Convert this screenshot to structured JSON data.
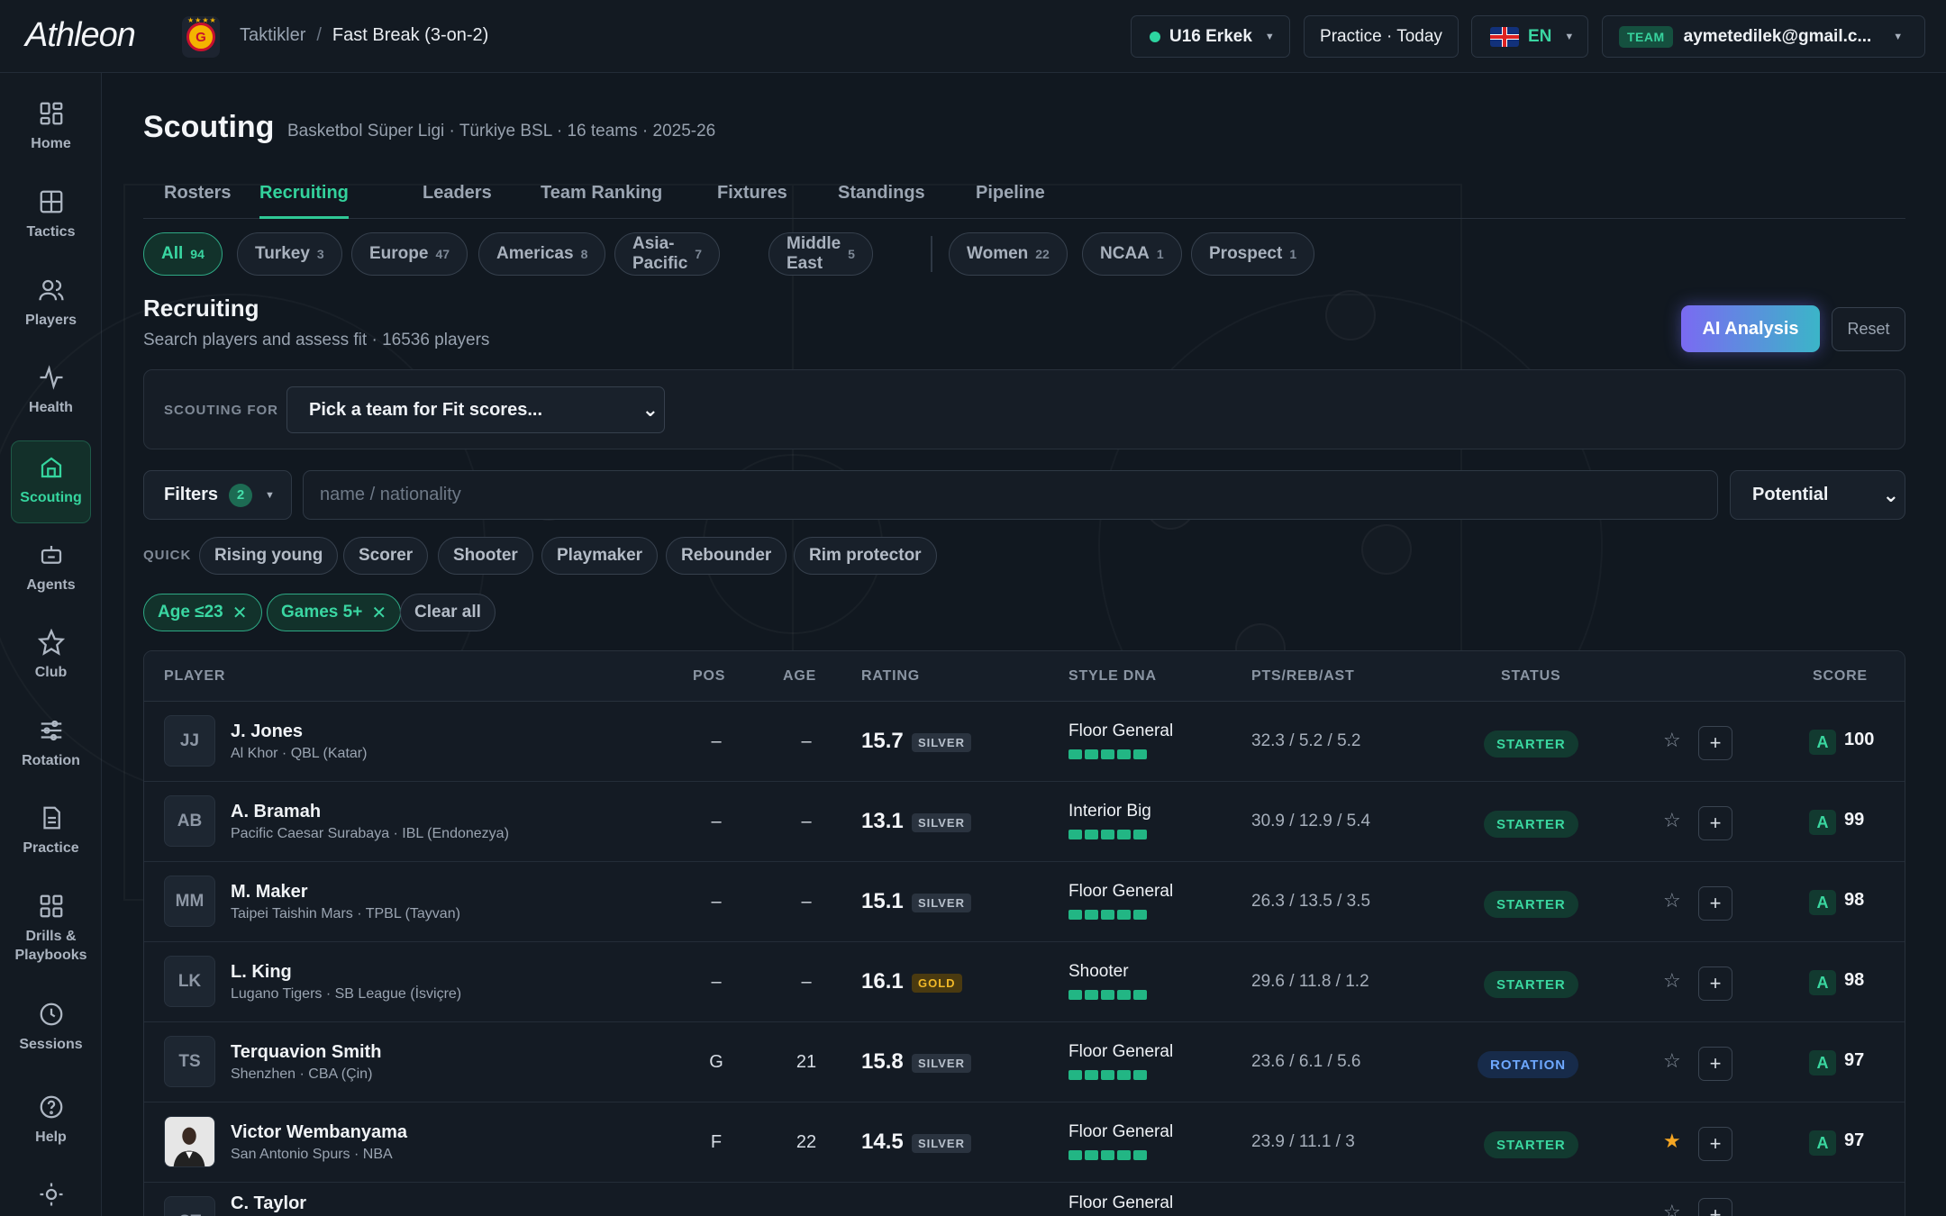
{
  "topbar": {
    "logo": "Athleon",
    "breadcrumb_parent": "Taktikler",
    "breadcrumb_sep": "/",
    "breadcrumb_current": "Fast Break (3-on-2)",
    "team_selector": "U16 Erkek",
    "session": "Practice · Today",
    "language": "EN",
    "account_badge": "TEAM",
    "account_email": "aymetedilek@gmail.c..."
  },
  "sidebar": {
    "items": [
      {
        "label": "Home",
        "icon": "home-icon"
      },
      {
        "label": "Tactics",
        "icon": "grid-icon"
      },
      {
        "label": "Players",
        "icon": "users-icon"
      },
      {
        "label": "Health",
        "icon": "pulse-icon"
      },
      {
        "label": "Scouting",
        "icon": "scouting-icon",
        "active": true
      },
      {
        "label": "Agents",
        "icon": "bot-icon"
      },
      {
        "label": "Club",
        "icon": "star-icon"
      },
      {
        "label": "Rotation",
        "icon": "sliders-icon"
      },
      {
        "label": "Practice",
        "icon": "clipboard-icon"
      },
      {
        "label": "Drills &",
        "label2": "Playbooks",
        "icon": "apps-icon"
      },
      {
        "label": "Sessions",
        "icon": "clock-icon"
      },
      {
        "label": "Help",
        "icon": "help-icon"
      }
    ]
  },
  "page": {
    "title": "Scouting",
    "subtitle": "Basketbol Süper Ligi · Türkiye BSL · 16 teams · 2025-26"
  },
  "tabs": [
    "Rosters",
    "Recruiting",
    "Leaders",
    "Team Ranking",
    "Fixtures",
    "Standings",
    "Pipeline"
  ],
  "active_tab": "Recruiting",
  "region_chips": [
    {
      "label": "All",
      "count": "94",
      "active": true
    },
    {
      "label": "Turkey",
      "count": "3"
    },
    {
      "label": "Europe",
      "count": "47"
    },
    {
      "label": "Americas",
      "count": "8"
    },
    {
      "label": "Asia-Pacific",
      "count": "7"
    },
    {
      "label": "Middle East",
      "count": "5"
    },
    {
      "label": "Women",
      "count": "22"
    },
    {
      "label": "NCAA",
      "count": "1"
    },
    {
      "label": "Prospect",
      "count": "1"
    }
  ],
  "recruiting": {
    "title": "Recruiting",
    "subtitle": "Search players and assess fit · 16536 players",
    "ai_button": "AI Analysis",
    "reset_button": "Reset",
    "scouting_for_label": "SCOUTING FOR",
    "scouting_for_value": "Pick a team for Fit scores...",
    "filters_label": "Filters",
    "filters_count": "2",
    "search_placeholder": "name / nationality",
    "sort_value": "Potential",
    "quick_label": "QUICK",
    "quick_filters": [
      "Rising young",
      "Scorer",
      "Shooter",
      "Playmaker",
      "Rebounder",
      "Rim protector"
    ],
    "active_filters": [
      "Age ≤23",
      "Games 5+"
    ],
    "clear_all": "Clear all"
  },
  "table": {
    "headers": {
      "player": "PLAYER",
      "pos": "POS",
      "age": "AGE",
      "rating": "RATING",
      "dna": "STYLE DNA",
      "stats": "PTS/REB/AST",
      "status": "STATUS",
      "score": "SCORE"
    },
    "rows": [
      {
        "initials": "JJ",
        "name": "J. Jones",
        "team": "Al Khor · QBL (Katar)",
        "pos": "–",
        "age": "–",
        "rating": "15.7",
        "tier": "SILVER",
        "dna": "Floor General",
        "stats": "32.3 / 5.2 / 5.2",
        "status": "STARTER",
        "starred": false,
        "grade": "A",
        "score": "100"
      },
      {
        "initials": "AB",
        "name": "A. Bramah",
        "team": "Pacific Caesar Surabaya · IBL (Endonezya)",
        "pos": "–",
        "age": "–",
        "rating": "13.1",
        "tier": "SILVER",
        "dna": "Interior Big",
        "stats": "30.9 / 12.9 / 5.4",
        "status": "STARTER",
        "starred": false,
        "grade": "A",
        "score": "99"
      },
      {
        "initials": "MM",
        "name": "M. Maker",
        "team": "Taipei Taishin Mars · TPBL (Tayvan)",
        "pos": "–",
        "age": "–",
        "rating": "15.1",
        "tier": "SILVER",
        "dna": "Floor General",
        "stats": "26.3 / 13.5 / 3.5",
        "status": "STARTER",
        "starred": false,
        "grade": "A",
        "score": "98"
      },
      {
        "initials": "LK",
        "name": "L. King",
        "team": "Lugano Tigers · SB League (İsviçre)",
        "pos": "–",
        "age": "–",
        "rating": "16.1",
        "tier": "GOLD",
        "dna": "Shooter",
        "stats": "29.6 / 11.8 / 1.2",
        "status": "STARTER",
        "starred": false,
        "grade": "A",
        "score": "98"
      },
      {
        "initials": "TS",
        "name": "Terquavion Smith",
        "team": "Shenzhen · CBA (Çin)",
        "pos": "G",
        "age": "21",
        "rating": "15.8",
        "tier": "SILVER",
        "dna": "Floor General",
        "stats": "23.6 / 6.1 / 5.6",
        "status": "ROTATION",
        "starred": false,
        "grade": "A",
        "score": "97"
      },
      {
        "initials": "",
        "name": "Victor Wembanyama",
        "team": "San Antonio Spurs · NBA",
        "pos": "F",
        "age": "22",
        "rating": "14.5",
        "tier": "SILVER",
        "dna": "Floor General",
        "stats": "23.9 / 11.1 / 3",
        "status": "STARTER",
        "starred": true,
        "grade": "A",
        "score": "97",
        "photo": true
      },
      {
        "initials": "CT",
        "name": "C. Taylor",
        "team": "",
        "pos": "",
        "age": "",
        "rating": "",
        "tier": "",
        "dna": "Floor General",
        "stats": "",
        "status": "",
        "starred": false,
        "grade": "",
        "score": ""
      }
    ]
  },
  "colors": {
    "accent": "#2fc896",
    "background": "#111820",
    "ai_gradient_start": "#7a6af2",
    "ai_gradient_end": "#3bb5c8",
    "gold": "#f2b928",
    "rotation": "#6ea8ff"
  }
}
